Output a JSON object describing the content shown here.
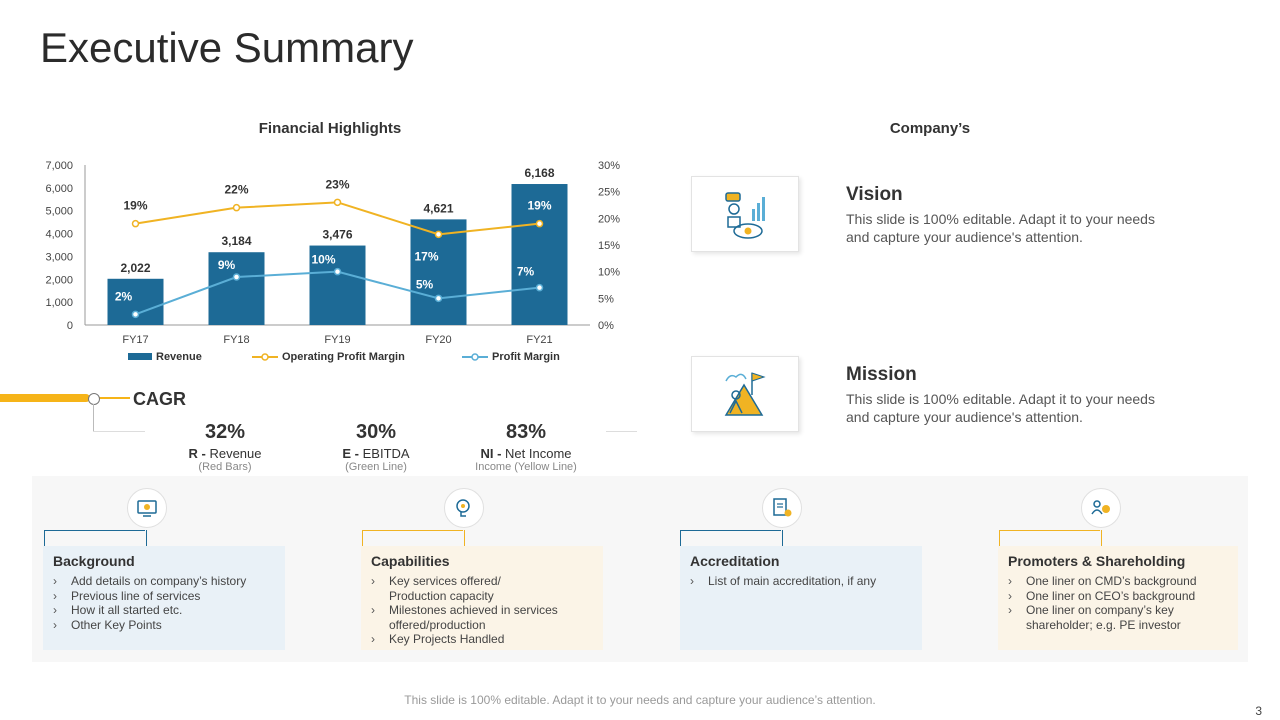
{
  "title": "Executive Summary",
  "chart_title": "Financial Highlights",
  "company_title": "Company’s",
  "colors": {
    "bar": "#1d6a96",
    "operating": "#f0b323",
    "profit": "#5aaed6"
  },
  "chart_data": {
    "type": "bar",
    "title": "Financial Highlights",
    "categories": [
      "FY17",
      "FY18",
      "FY19",
      "FY20",
      "FY21"
    ],
    "series": [
      {
        "name": "Revenue",
        "type": "bar",
        "axis": "left",
        "values": [
          2022,
          3184,
          3476,
          4621,
          6168
        ],
        "labels": [
          "2,022",
          "3,184",
          "3,476",
          "4,621",
          "6,168"
        ]
      },
      {
        "name": "Operating Profit Margin",
        "type": "line",
        "axis": "right",
        "values": [
          19,
          22,
          23,
          17,
          19
        ],
        "labels": [
          "19%",
          "22%",
          "23%",
          "17%",
          "19%"
        ]
      },
      {
        "name": "Profit Margin",
        "type": "line",
        "axis": "right",
        "values": [
          2,
          9,
          10,
          5,
          7
        ],
        "labels": [
          "2%",
          "9%",
          "10%",
          "5%",
          "7%"
        ]
      }
    ],
    "y_left": {
      "min": 0,
      "max": 7000,
      "ticks": [
        "0",
        "1,000",
        "2,000",
        "3,000",
        "4,000",
        "5,000",
        "6,000",
        "7,000"
      ]
    },
    "y_right": {
      "min": 0,
      "max": 30,
      "ticks": [
        "0%",
        "5%",
        "10%",
        "15%",
        "20%",
        "25%",
        "30%"
      ]
    },
    "legend": "bottom"
  },
  "cagr": {
    "label": "CAGR",
    "items": [
      {
        "pct": "32%",
        "key": "R -",
        "name": " Revenue",
        "sub": "(Red Bars)"
      },
      {
        "pct": "30%",
        "key": "E -",
        "name": " EBITDA",
        "sub": "(Green Line)"
      },
      {
        "pct": "83%",
        "key": "NI -",
        "name": " Net Income",
        "sub": "Income (Yellow Line)"
      }
    ]
  },
  "vision": {
    "title": "Vision",
    "text": "This slide is 100% editable. Adapt it to your needs and capture your audience's attention."
  },
  "mission": {
    "title": "Mission",
    "text": "This slide is 100% editable. Adapt it to your needs and capture your audience's attention."
  },
  "cards": [
    {
      "title": "Background",
      "bullets": [
        "Add details on company’s history",
        "Previous line of services",
        "How it all started etc.",
        "Other Key Points"
      ]
    },
    {
      "title": "Capabilities",
      "bullets": [
        "Key services offered/ Production capacity",
        "Milestones achieved in services offered/production",
        "Key Projects Handled"
      ]
    },
    {
      "title": "Accreditation",
      "bullets": [
        "List of main accreditation, if any"
      ]
    },
    {
      "title": "Promoters & Shareholding",
      "bullets": [
        "One liner on CMD’s background",
        "One liner on CEO’s background",
        "One liner on company’s key shareholder; e.g. PE investor"
      ]
    }
  ],
  "footer": "This slide is 100% editable. Adapt it to your needs and capture your audience’s attention.",
  "page_number": "3"
}
